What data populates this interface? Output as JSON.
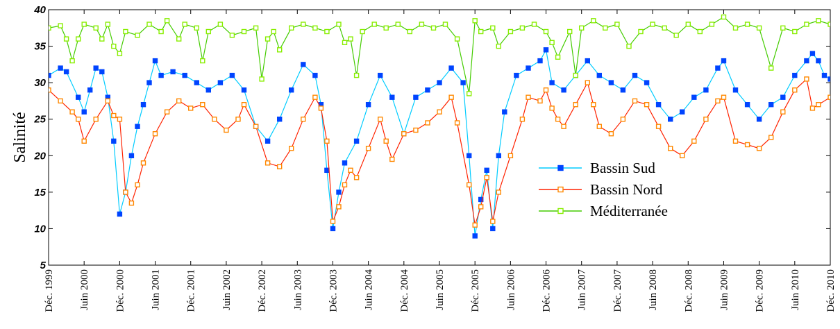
{
  "chart_data": {
    "type": "line",
    "title": "",
    "xlabel": "",
    "ylabel": "Salinité",
    "ylim": [
      5,
      40
    ],
    "yticks": [
      "5",
      "10",
      "15",
      "20",
      "25",
      "30",
      "35",
      "40"
    ],
    "xlim": [
      "1999-12",
      "2010-12"
    ],
    "x_tick_labels": [
      "Déc. 1999",
      "Juin 2000",
      "Déc. 2000",
      "Juin 2001",
      "Déc. 2001",
      "Juin 2002",
      "Déc. 2002",
      "Juin 2003",
      "Déc. 2003",
      "Juin 2004",
      "Déc. 2004",
      "Juin 2005",
      "Déc. 2005",
      "Juin 2006",
      "Déc. 2006",
      "Juin 2007",
      "Déc. 2007",
      "Juin 2008",
      "Déc. 2008",
      "Juin 2009",
      "Déc. 2009",
      "Juin 2010",
      "Déc. 2010"
    ],
    "grid": false,
    "legend_position": "center-right",
    "series": [
      {
        "name": "Bassin Sud",
        "color": "#00ccff",
        "marker_color": "#0044ff",
        "marker": "filled-square",
        "points": [
          [
            "1999-12",
            31
          ],
          [
            "2000-02",
            32
          ],
          [
            "2000-03",
            31.5
          ],
          [
            "2000-05",
            28
          ],
          [
            "2000-06",
            26
          ],
          [
            "2000-07",
            29
          ],
          [
            "2000-08",
            32
          ],
          [
            "2000-09",
            31.5
          ],
          [
            "2000-10",
            28
          ],
          [
            "2000-11",
            22
          ],
          [
            "2000-12",
            12
          ],
          [
            "2001-01",
            15
          ],
          [
            "2001-02",
            20
          ],
          [
            "2001-03",
            24
          ],
          [
            "2001-04",
            27
          ],
          [
            "2001-05",
            30
          ],
          [
            "2001-06",
            33
          ],
          [
            "2001-07",
            31
          ],
          [
            "2001-09",
            31.5
          ],
          [
            "2001-11",
            31
          ],
          [
            "2002-01",
            30
          ],
          [
            "2002-03",
            29
          ],
          [
            "2002-05",
            30
          ],
          [
            "2002-07",
            31
          ],
          [
            "2002-09",
            29
          ],
          [
            "2002-11",
            24
          ],
          [
            "2003-01",
            22
          ],
          [
            "2003-03",
            25
          ],
          [
            "2003-05",
            29
          ],
          [
            "2003-07",
            32.5
          ],
          [
            "2003-09",
            31
          ],
          [
            "2003-10",
            27
          ],
          [
            "2003-11",
            18
          ],
          [
            "2003-12",
            10
          ],
          [
            "2004-01",
            15
          ],
          [
            "2004-02",
            19
          ],
          [
            "2004-04",
            22
          ],
          [
            "2004-06",
            27
          ],
          [
            "2004-08",
            31
          ],
          [
            "2004-10",
            28
          ],
          [
            "2004-12",
            23
          ],
          [
            "2005-02",
            28
          ],
          [
            "2005-04",
            29
          ],
          [
            "2005-06",
            30
          ],
          [
            "2005-08",
            32
          ],
          [
            "2005-10",
            30
          ],
          [
            "2005-11",
            20
          ],
          [
            "2005-12",
            9
          ],
          [
            "2006-01",
            14
          ],
          [
            "2006-02",
            18
          ],
          [
            "2006-03",
            10
          ],
          [
            "2006-04",
            20
          ],
          [
            "2006-05",
            26
          ],
          [
            "2006-07",
            31
          ],
          [
            "2006-09",
            32
          ],
          [
            "2006-11",
            33
          ],
          [
            "2006-12",
            34.5
          ],
          [
            "2007-01",
            30
          ],
          [
            "2007-03",
            29
          ],
          [
            "2007-05",
            31
          ],
          [
            "2007-07",
            33
          ],
          [
            "2007-09",
            31
          ],
          [
            "2007-11",
            30
          ],
          [
            "2008-01",
            29
          ],
          [
            "2008-03",
            31
          ],
          [
            "2008-05",
            30
          ],
          [
            "2008-07",
            27
          ],
          [
            "2008-09",
            25
          ],
          [
            "2008-11",
            26
          ],
          [
            "2009-01",
            28
          ],
          [
            "2009-03",
            29
          ],
          [
            "2009-05",
            32
          ],
          [
            "2009-06",
            33
          ],
          [
            "2009-08",
            29
          ],
          [
            "2009-10",
            27
          ],
          [
            "2009-12",
            25
          ],
          [
            "2010-02",
            27
          ],
          [
            "2010-04",
            28
          ],
          [
            "2010-06",
            31
          ],
          [
            "2010-08",
            33
          ],
          [
            "2010-09",
            34
          ],
          [
            "2010-10",
            33
          ],
          [
            "2010-11",
            31
          ],
          [
            "2010-12",
            30.5
          ]
        ]
      },
      {
        "name": "Bassin Nord",
        "color": "#ff2200",
        "marker_color": "#ff8800",
        "marker": "open-square",
        "points": [
          [
            "1999-12",
            29
          ],
          [
            "2000-02",
            27.5
          ],
          [
            "2000-04",
            26
          ],
          [
            "2000-05",
            25
          ],
          [
            "2000-06",
            22
          ],
          [
            "2000-08",
            25
          ],
          [
            "2000-10",
            27.5
          ],
          [
            "2000-11",
            25.5
          ],
          [
            "2000-12",
            25
          ],
          [
            "2001-01",
            15
          ],
          [
            "2001-02",
            13.5
          ],
          [
            "2001-03",
            16
          ],
          [
            "2001-04",
            19
          ],
          [
            "2001-06",
            23
          ],
          [
            "2001-08",
            26
          ],
          [
            "2001-10",
            27.5
          ],
          [
            "2001-12",
            26.5
          ],
          [
            "2002-02",
            27
          ],
          [
            "2002-04",
            25
          ],
          [
            "2002-06",
            23.5
          ],
          [
            "2002-08",
            25
          ],
          [
            "2002-09",
            27
          ],
          [
            "2002-11",
            24
          ],
          [
            "2003-01",
            19
          ],
          [
            "2003-03",
            18.5
          ],
          [
            "2003-05",
            21
          ],
          [
            "2003-07",
            25
          ],
          [
            "2003-09",
            28
          ],
          [
            "2003-10",
            26.5
          ],
          [
            "2003-11",
            22
          ],
          [
            "2003-12",
            11
          ],
          [
            "2004-01",
            13
          ],
          [
            "2004-02",
            16
          ],
          [
            "2004-03",
            18
          ],
          [
            "2004-04",
            17
          ],
          [
            "2004-06",
            21
          ],
          [
            "2004-08",
            25
          ],
          [
            "2004-09",
            22
          ],
          [
            "2004-10",
            19.5
          ],
          [
            "2004-12",
            23
          ],
          [
            "2005-02",
            23.5
          ],
          [
            "2005-04",
            24.5
          ],
          [
            "2005-06",
            26
          ],
          [
            "2005-08",
            28
          ],
          [
            "2005-09",
            24.5
          ],
          [
            "2005-11",
            16
          ],
          [
            "2005-12",
            10.5
          ],
          [
            "2006-01",
            13
          ],
          [
            "2006-02",
            17
          ],
          [
            "2006-03",
            11
          ],
          [
            "2006-04",
            15
          ],
          [
            "2006-06",
            20
          ],
          [
            "2006-08",
            25
          ],
          [
            "2006-09",
            28
          ],
          [
            "2006-11",
            27.5
          ],
          [
            "2006-12",
            29
          ],
          [
            "2007-01",
            26.5
          ],
          [
            "2007-02",
            25
          ],
          [
            "2007-03",
            24
          ],
          [
            "2007-05",
            27
          ],
          [
            "2007-07",
            30
          ],
          [
            "2007-08",
            27
          ],
          [
            "2007-09",
            24
          ],
          [
            "2007-11",
            23
          ],
          [
            "2008-01",
            25
          ],
          [
            "2008-03",
            27.5
          ],
          [
            "2008-05",
            27
          ],
          [
            "2008-07",
            24
          ],
          [
            "2008-09",
            21
          ],
          [
            "2008-11",
            20
          ],
          [
            "2009-01",
            22
          ],
          [
            "2009-03",
            25
          ],
          [
            "2009-05",
            27.5
          ],
          [
            "2009-06",
            28
          ],
          [
            "2009-08",
            22
          ],
          [
            "2009-10",
            21.5
          ],
          [
            "2009-12",
            21
          ],
          [
            "2010-02",
            22.5
          ],
          [
            "2010-04",
            26
          ],
          [
            "2010-06",
            29
          ],
          [
            "2010-08",
            30.5
          ],
          [
            "2010-09",
            26.5
          ],
          [
            "2010-10",
            27
          ],
          [
            "2010-12",
            28
          ]
        ]
      },
      {
        "name": "Méditerranée",
        "color": "#44cc00",
        "marker_color": "#88ee00",
        "marker": "open-square",
        "points": [
          [
            "1999-12",
            37.5
          ],
          [
            "2000-02",
            37.8
          ],
          [
            "2000-03",
            36
          ],
          [
            "2000-04",
            33
          ],
          [
            "2000-05",
            36
          ],
          [
            "2000-06",
            38
          ],
          [
            "2000-08",
            37.5
          ],
          [
            "2000-09",
            36
          ],
          [
            "2000-10",
            38
          ],
          [
            "2000-11",
            35
          ],
          [
            "2000-12",
            34
          ],
          [
            "2001-01",
            37
          ],
          [
            "2001-03",
            36.5
          ],
          [
            "2001-05",
            38
          ],
          [
            "2001-07",
            37
          ],
          [
            "2001-08",
            38.5
          ],
          [
            "2001-10",
            36
          ],
          [
            "2001-11",
            38
          ],
          [
            "2002-01",
            37.5
          ],
          [
            "2002-02",
            33
          ],
          [
            "2002-03",
            37
          ],
          [
            "2002-05",
            38
          ],
          [
            "2002-07",
            36.5
          ],
          [
            "2002-09",
            37
          ],
          [
            "2002-11",
            37.5
          ],
          [
            "2002-12",
            30.5
          ],
          [
            "2003-01",
            36
          ],
          [
            "2003-02",
            37
          ],
          [
            "2003-03",
            34.5
          ],
          [
            "2003-05",
            37.5
          ],
          [
            "2003-07",
            38
          ],
          [
            "2003-09",
            37.5
          ],
          [
            "2003-11",
            37
          ],
          [
            "2004-01",
            38
          ],
          [
            "2004-02",
            35.5
          ],
          [
            "2004-03",
            36
          ],
          [
            "2004-04",
            31
          ],
          [
            "2004-05",
            37
          ],
          [
            "2004-07",
            38
          ],
          [
            "2004-09",
            37.5
          ],
          [
            "2004-11",
            38
          ],
          [
            "2005-01",
            37
          ],
          [
            "2005-03",
            38
          ],
          [
            "2005-05",
            37.5
          ],
          [
            "2005-07",
            38
          ],
          [
            "2005-09",
            36
          ],
          [
            "2005-11",
            28.5
          ],
          [
            "2005-12",
            38.5
          ],
          [
            "2006-01",
            37
          ],
          [
            "2006-03",
            37.5
          ],
          [
            "2006-04",
            35
          ],
          [
            "2006-06",
            37
          ],
          [
            "2006-08",
            37.5
          ],
          [
            "2006-10",
            38
          ],
          [
            "2006-12",
            37
          ],
          [
            "2007-01",
            35.5
          ],
          [
            "2007-02",
            33.5
          ],
          [
            "2007-04",
            37
          ],
          [
            "2007-05",
            31
          ],
          [
            "2007-06",
            37.5
          ],
          [
            "2007-08",
            38.5
          ],
          [
            "2007-10",
            37.5
          ],
          [
            "2007-12",
            38
          ],
          [
            "2008-02",
            35
          ],
          [
            "2008-04",
            37
          ],
          [
            "2008-06",
            38
          ],
          [
            "2008-08",
            37.5
          ],
          [
            "2008-10",
            36.5
          ],
          [
            "2008-12",
            38
          ],
          [
            "2009-02",
            37
          ],
          [
            "2009-04",
            38
          ],
          [
            "2009-06",
            39
          ],
          [
            "2009-08",
            37.5
          ],
          [
            "2009-10",
            38
          ],
          [
            "2009-12",
            37.5
          ],
          [
            "2010-02",
            32
          ],
          [
            "2010-04",
            37.5
          ],
          [
            "2010-06",
            37
          ],
          [
            "2010-08",
            38
          ],
          [
            "2010-10",
            38.5
          ],
          [
            "2010-12",
            38
          ]
        ]
      }
    ]
  }
}
